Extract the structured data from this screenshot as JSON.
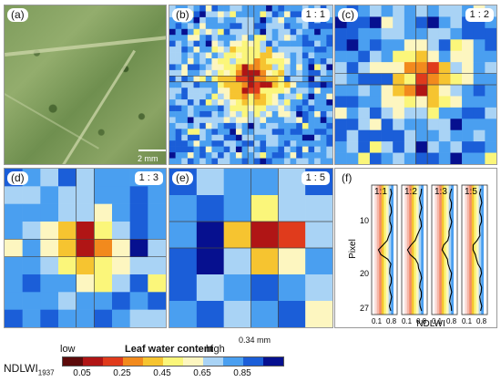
{
  "panels": {
    "a": {
      "label": "(a)",
      "scale": "2 mm"
    },
    "b": {
      "label": "(b)",
      "ratio": "1 : 1"
    },
    "c": {
      "label": "(c)",
      "ratio": "1 : 2"
    },
    "d": {
      "label": "(d)",
      "ratio": "1 : 3"
    },
    "e": {
      "label": "(e)",
      "ratio": "1 : 5",
      "scale": "0.34 mm"
    },
    "f": {
      "label": "(f)",
      "ylabel": "Pixel",
      "xlabel": "NDLWI",
      "yticks": [
        "10",
        "20",
        "27"
      ],
      "subplots": [
        {
          "title": "1:1",
          "xticks": [
            "0.1",
            "0.8"
          ]
        },
        {
          "title": "1:2",
          "xticks": [
            "0.1",
            "0.8"
          ]
        },
        {
          "title": "1:3",
          "xticks": [
            "0.1",
            "0.8"
          ]
        },
        {
          "title": "1:5",
          "xticks": [
            "0.1",
            "0.8"
          ]
        }
      ]
    }
  },
  "legend": {
    "low": "low",
    "title": "Leaf water content",
    "high": "high",
    "index_label": "NDLWI",
    "index_subscript": "1937",
    "ticks": [
      "0.05",
      "0.25",
      "0.45",
      "0.65",
      "0.85"
    ],
    "colors": [
      "#5c0a0a",
      "#b01515",
      "#e03b1c",
      "#f28a1d",
      "#f6c430",
      "#fbf67a",
      "#fdf6c0",
      "#a9d3f5",
      "#4a9ff0",
      "#1b5ed8",
      "#06108f"
    ]
  }
}
